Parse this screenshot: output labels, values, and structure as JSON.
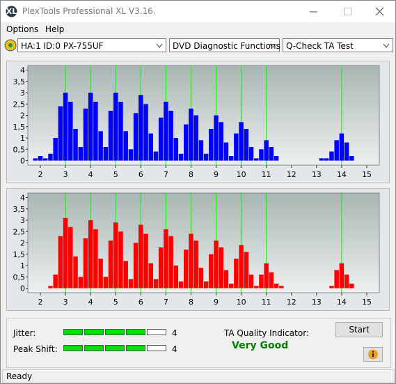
{
  "window": {
    "title": "PlexTools Professional XL V3.16."
  },
  "menu": [
    "Options",
    "Help"
  ],
  "toolbar": {
    "drive": "HA:1 ID:0  PX-755UF",
    "function": "DVD Diagnostic Functions",
    "test": "Q-Check TA Test"
  },
  "chart_data": [
    {
      "type": "bar",
      "color": "#0000ff",
      "x": [
        1.8,
        2.0,
        2.2,
        2.4,
        2.6,
        2.8,
        3.0,
        3.2,
        3.4,
        3.6,
        3.8,
        4.0,
        4.2,
        4.4,
        4.6,
        4.8,
        5.0,
        5.2,
        5.4,
        5.6,
        5.8,
        6.0,
        6.2,
        6.4,
        6.6,
        6.8,
        7.0,
        7.2,
        7.4,
        7.6,
        7.8,
        8.0,
        8.2,
        8.4,
        8.6,
        8.8,
        9.0,
        9.2,
        9.4,
        9.6,
        9.8,
        10.0,
        10.2,
        10.4,
        10.6,
        10.8,
        11.0,
        11.2,
        11.4,
        11.6,
        11.8,
        12.0,
        12.2,
        12.4,
        12.6,
        12.8,
        13.0,
        13.2,
        13.4,
        13.6,
        13.8,
        14.0,
        14.2,
        14.4
      ],
      "values": [
        0.1,
        0.2,
        0.1,
        0.3,
        1.0,
        2.4,
        3.0,
        2.6,
        1.4,
        0.6,
        2.3,
        3.0,
        2.6,
        1.3,
        0.6,
        2.2,
        3.0,
        2.6,
        1.3,
        0.5,
        2.1,
        2.9,
        2.5,
        1.2,
        0.4,
        1.9,
        2.6,
        2.2,
        1.0,
        0.3,
        1.6,
        2.3,
        2.0,
        0.9,
        0.3,
        1.4,
        2.0,
        1.7,
        0.8,
        0.2,
        1.2,
        1.7,
        1.4,
        0.6,
        0.1,
        0.5,
        0.9,
        0.6,
        0.2,
        0,
        0,
        0,
        0,
        0,
        0,
        0,
        0,
        0.1,
        0.1,
        0.4,
        0.9,
        1.2,
        0.8,
        0.2
      ],
      "xlim": [
        1.5,
        15.5
      ],
      "ylim": [
        -0.2,
        4.2
      ],
      "xticks": [
        2,
        3,
        4,
        5,
        6,
        7,
        8,
        9,
        10,
        11,
        12,
        13,
        14,
        15
      ],
      "yticks": [
        0,
        {
          "value": 0.5,
          "label": "0,5"
        },
        1,
        {
          "value": 1.5,
          "label": "1,5"
        },
        2,
        {
          "value": 2.5,
          "label": "2,5"
        },
        3,
        {
          "value": 3.5,
          "label": "3,5"
        },
        4
      ],
      "xgrid": [
        3,
        4,
        5,
        6,
        7,
        8,
        9,
        10,
        11,
        14
      ],
      "grid_color": "#22dd22"
    },
    {
      "type": "bar",
      "color": "#ff0000",
      "x": [
        1.8,
        2.0,
        2.2,
        2.4,
        2.6,
        2.8,
        3.0,
        3.2,
        3.4,
        3.6,
        3.8,
        4.0,
        4.2,
        4.4,
        4.6,
        4.8,
        5.0,
        5.2,
        5.4,
        5.6,
        5.8,
        6.0,
        6.2,
        6.4,
        6.6,
        6.8,
        7.0,
        7.2,
        7.4,
        7.6,
        7.8,
        8.0,
        8.2,
        8.4,
        8.6,
        8.8,
        9.0,
        9.2,
        9.4,
        9.6,
        9.8,
        10.0,
        10.2,
        10.4,
        10.6,
        10.8,
        11.0,
        11.2,
        11.4,
        11.6,
        11.8,
        12.0,
        12.2,
        12.4,
        12.6,
        12.8,
        13.0,
        13.2,
        13.4,
        13.6,
        13.8,
        14.0,
        14.2,
        14.4
      ],
      "values": [
        0,
        0,
        0,
        0.1,
        0.6,
        2.3,
        3.1,
        2.7,
        1.4,
        0.5,
        2.2,
        3.0,
        2.6,
        1.3,
        0.5,
        2.1,
        2.9,
        2.5,
        1.2,
        0.4,
        2.0,
        2.8,
        2.4,
        1.1,
        0.4,
        1.8,
        2.6,
        2.3,
        1.0,
        0.3,
        1.7,
        2.4,
        2.1,
        0.9,
        0.3,
        1.5,
        2.1,
        1.8,
        0.8,
        0.2,
        1.3,
        1.9,
        1.6,
        0.6,
        0.1,
        0.6,
        1.1,
        0.7,
        0.2,
        0.1,
        0,
        0,
        0,
        0,
        0,
        0,
        0,
        0,
        0,
        0.1,
        0.8,
        1.1,
        0.6,
        0.2
      ],
      "xlim": [
        1.5,
        15.5
      ],
      "ylim": [
        -0.2,
        4.2
      ],
      "xticks": [
        2,
        3,
        4,
        5,
        6,
        7,
        8,
        9,
        10,
        11,
        12,
        13,
        14,
        15
      ],
      "yticks": [
        0,
        {
          "value": 0.5,
          "label": "0,5"
        },
        1,
        {
          "value": 1.5,
          "label": "1,5"
        },
        2,
        {
          "value": 2.5,
          "label": "2,5"
        },
        3,
        {
          "value": 3.5,
          "label": "3,5"
        },
        4
      ],
      "xgrid": [
        3,
        4,
        5,
        6,
        7,
        8,
        9,
        10,
        11,
        14
      ],
      "grid_color": "#22dd22"
    }
  ],
  "results": {
    "jitter": {
      "label": "Jitter:",
      "value": 4
    },
    "peak_shift": {
      "label": "Peak Shift:",
      "value": 4
    },
    "ta_quality": {
      "label": "TA Quality Indicator:",
      "value": "Very Good"
    },
    "start": "Start"
  },
  "status": "Ready"
}
